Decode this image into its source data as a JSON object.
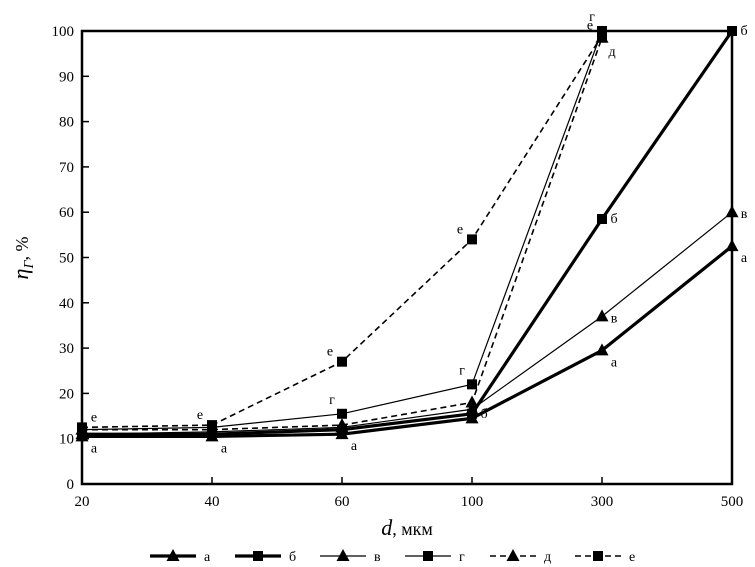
{
  "chart_data": {
    "type": "line",
    "title": "",
    "xlabel": "d",
    "xlabel_unit": ", мкм",
    "ylabel": "η",
    "ylabel_sub": "Г",
    "ylabel_unit": ", %",
    "categories": [
      "20",
      "40",
      "60",
      "100",
      "300",
      "500"
    ],
    "ylim": [
      0,
      100
    ],
    "yticks": [
      "0",
      "10",
      "20",
      "30",
      "40",
      "50",
      "60",
      "70",
      "80",
      "90",
      "100"
    ],
    "grid": false,
    "legend_position": "bottom",
    "series": [
      {
        "name": "а",
        "marker": "triangle",
        "dash": "solid",
        "width": 3.2,
        "values": [
          10.5,
          10.5,
          11,
          14.5,
          29.5,
          52.5
        ],
        "labels": [
          "а",
          "а",
          "а",
          "",
          "а",
          "а"
        ]
      },
      {
        "name": "б",
        "marker": "square",
        "dash": "solid",
        "width": 3.2,
        "values": [
          11,
          11,
          12,
          15.5,
          58.5,
          100
        ],
        "labels": [
          "",
          "",
          "",
          "б",
          "б",
          "б"
        ]
      },
      {
        "name": "в",
        "marker": "triangle",
        "dash": "solid",
        "width": 1.2,
        "values": [
          11,
          11.5,
          12.5,
          16.5,
          37,
          60
        ],
        "labels": [
          "",
          "",
          "",
          "",
          "в",
          "в"
        ]
      },
      {
        "name": "г",
        "marker": "square",
        "dash": "solid",
        "width": 1.2,
        "values": [
          12,
          12.5,
          15.5,
          22,
          100,
          null
        ],
        "labels": [
          "",
          "",
          "г",
          "г",
          "г",
          ""
        ]
      },
      {
        "name": "д",
        "marker": "triangle",
        "dash": "dashed",
        "width": 1.6,
        "values": [
          12,
          12,
          13,
          18,
          98.5,
          null
        ],
        "labels": [
          "",
          "",
          "",
          "",
          "д",
          ""
        ]
      },
      {
        "name": "е",
        "marker": "square",
        "dash": "dashed",
        "width": 1.6,
        "values": [
          12.5,
          13,
          27,
          54,
          99,
          null
        ],
        "labels": [
          "е",
          "е",
          "е",
          "е",
          "е",
          ""
        ]
      }
    ]
  }
}
